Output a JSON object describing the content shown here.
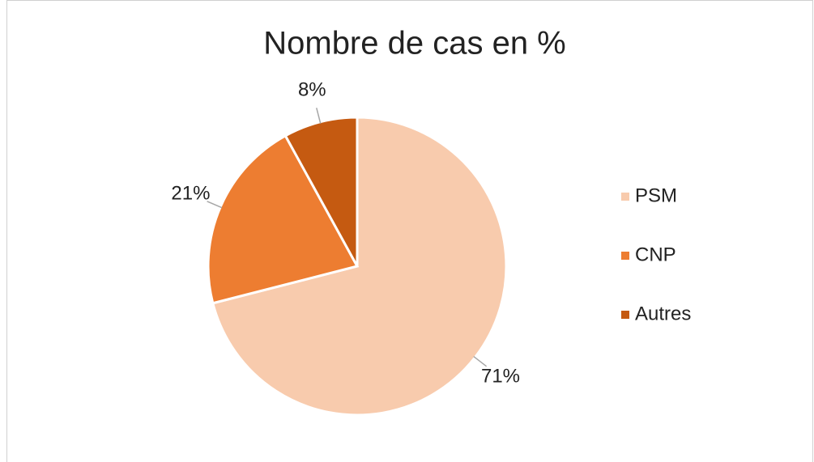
{
  "chart_data": {
    "type": "pie",
    "title": "Nombre de cas en %",
    "categories": [
      "PSM",
      "CNP",
      "Autres"
    ],
    "values": [
      71,
      21,
      8
    ],
    "value_labels": [
      "71%",
      "21%",
      "8%"
    ],
    "colors": [
      "#f8cbad",
      "#ed7d31",
      "#c55a11"
    ],
    "legend": "right"
  }
}
